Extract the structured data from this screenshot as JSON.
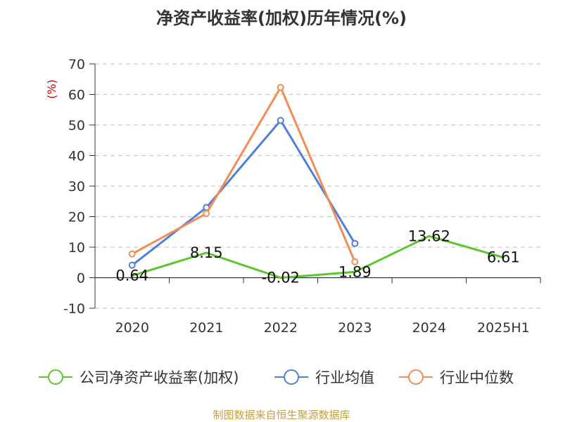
{
  "title": "净资产收益率(加权)历年情况(%)",
  "footer": "制图数据来自恒生聚源数据库",
  "chart_data": {
    "type": "line",
    "categories": [
      "2020",
      "2021",
      "2022",
      "2023",
      "2024",
      "2025H1"
    ],
    "ylabel": "(%)",
    "ylim": [
      -10,
      70
    ],
    "yticks": [
      -10,
      0,
      10,
      20,
      30,
      40,
      50,
      60,
      70
    ],
    "grid": true,
    "legend_position": "bottom",
    "series": [
      {
        "name": "公司净资产收益率(加权)",
        "color": "#5cc62e",
        "values": [
          0.64,
          8.15,
          -0.02,
          1.89,
          13.62,
          6.61
        ],
        "labels": [
          "0.64",
          "8.15",
          "-0.02",
          "1.89",
          "13.62",
          "6.61"
        ],
        "show_labels": true,
        "markers_shown": [
          false,
          false,
          false,
          false,
          false,
          false
        ]
      },
      {
        "name": "行业均值",
        "color": "#4f7fdb",
        "values": [
          4.1,
          23,
          51.5,
          11.2,
          null,
          null
        ],
        "show_labels": false,
        "markers_shown": [
          true,
          true,
          true,
          true,
          false,
          false
        ]
      },
      {
        "name": "行业中位数",
        "color": "#f48c55",
        "values": [
          7.8,
          21,
          62.3,
          5.2,
          null,
          null
        ],
        "show_labels": false,
        "markers_shown": [
          true,
          true,
          true,
          true,
          false,
          false
        ]
      }
    ]
  }
}
